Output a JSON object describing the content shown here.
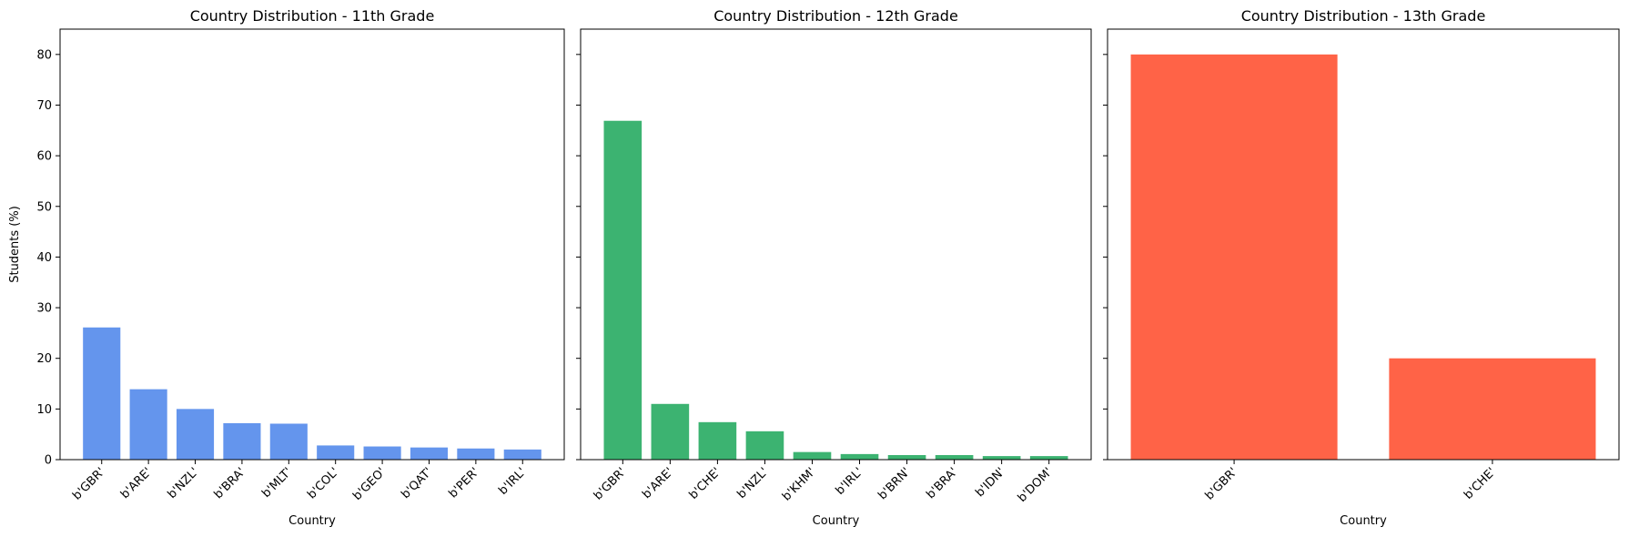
{
  "chart_data": [
    {
      "type": "bar",
      "title": "Country Distribution - 11th Grade",
      "xlabel": "Country",
      "ylabel": "Students (%)",
      "ylim": [
        0,
        85
      ],
      "yticks": [
        0,
        10,
        20,
        30,
        40,
        50,
        60,
        70,
        80
      ],
      "color": "#6495ED",
      "categories": [
        "b'GBR'",
        "b'ARE'",
        "b'NZL'",
        "b'BRA'",
        "b'MLT'",
        "b'COL'",
        "b'GEO'",
        "b'QAT'",
        "b'PER'",
        "b'IRL'"
      ],
      "values": [
        26.1,
        13.9,
        10.0,
        7.2,
        7.1,
        2.8,
        2.6,
        2.4,
        2.2,
        2.0
      ],
      "grid": false
    },
    {
      "type": "bar",
      "title": "Country Distribution - 12th Grade",
      "xlabel": "Country",
      "ylabel": "",
      "ylim": [
        0,
        85
      ],
      "yticks": [
        0,
        10,
        20,
        30,
        40,
        50,
        60,
        70,
        80
      ],
      "color": "#3CB371",
      "categories": [
        "b'GBR'",
        "b'ARE'",
        "b'CHE'",
        "b'NZL'",
        "b'KHM'",
        "b'IRL'",
        "b'BRN'",
        "b'BRA'",
        "b'IDN'",
        "b'DOM'"
      ],
      "values": [
        66.9,
        11.0,
        7.4,
        5.6,
        1.5,
        1.1,
        0.9,
        0.9,
        0.7,
        0.7
      ],
      "grid": false
    },
    {
      "type": "bar",
      "title": "Country Distribution - 13th Grade",
      "xlabel": "Country",
      "ylabel": "",
      "ylim": [
        0,
        85
      ],
      "yticks": [
        0,
        10,
        20,
        30,
        40,
        50,
        60,
        70,
        80
      ],
      "color": "#FF6347",
      "categories": [
        "b'GBR'",
        "b'CHE'"
      ],
      "values": [
        80.0,
        20.0
      ],
      "grid": false
    }
  ]
}
